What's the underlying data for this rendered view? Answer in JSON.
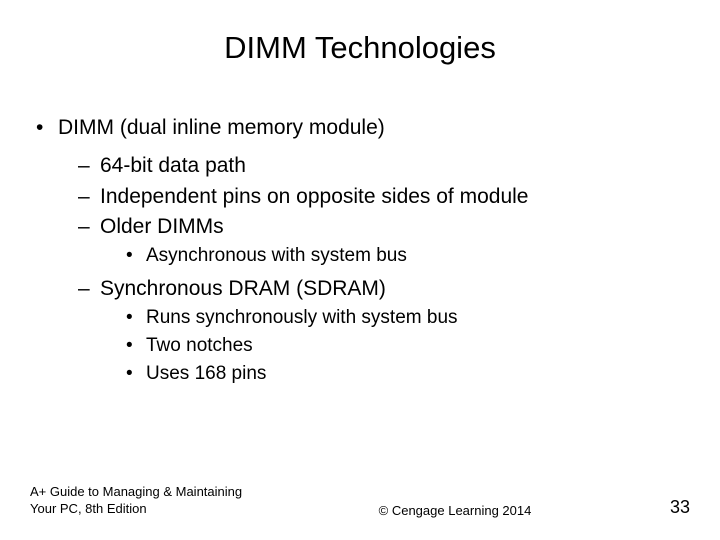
{
  "title": "DIMM Technologies",
  "bullets": {
    "l1_0": "DIMM (dual inline memory module)",
    "l2_0": "64-bit data path",
    "l2_1": "Independent pins on opposite sides of module",
    "l2_2": "Older DIMMs",
    "l3_0": "Asynchronous with system bus",
    "l2_3": "Synchronous DRAM (SDRAM)",
    "l3_1": "Runs synchronously with system bus",
    "l3_2": "Two notches",
    "l3_3": "Uses 168 pins"
  },
  "footer": {
    "left_line1": "A+ Guide to Managing & Maintaining",
    "left_line2": "Your PC, 8th Edition",
    "center": "© Cengage Learning 2014",
    "page": "33"
  },
  "style": {
    "background": "#ffffff",
    "text_color": "#000000",
    "title_fontsize": 31,
    "body_fontsize": 21,
    "sub_fontsize": 19,
    "footer_fontsize": 13,
    "page_fontsize": 18
  }
}
